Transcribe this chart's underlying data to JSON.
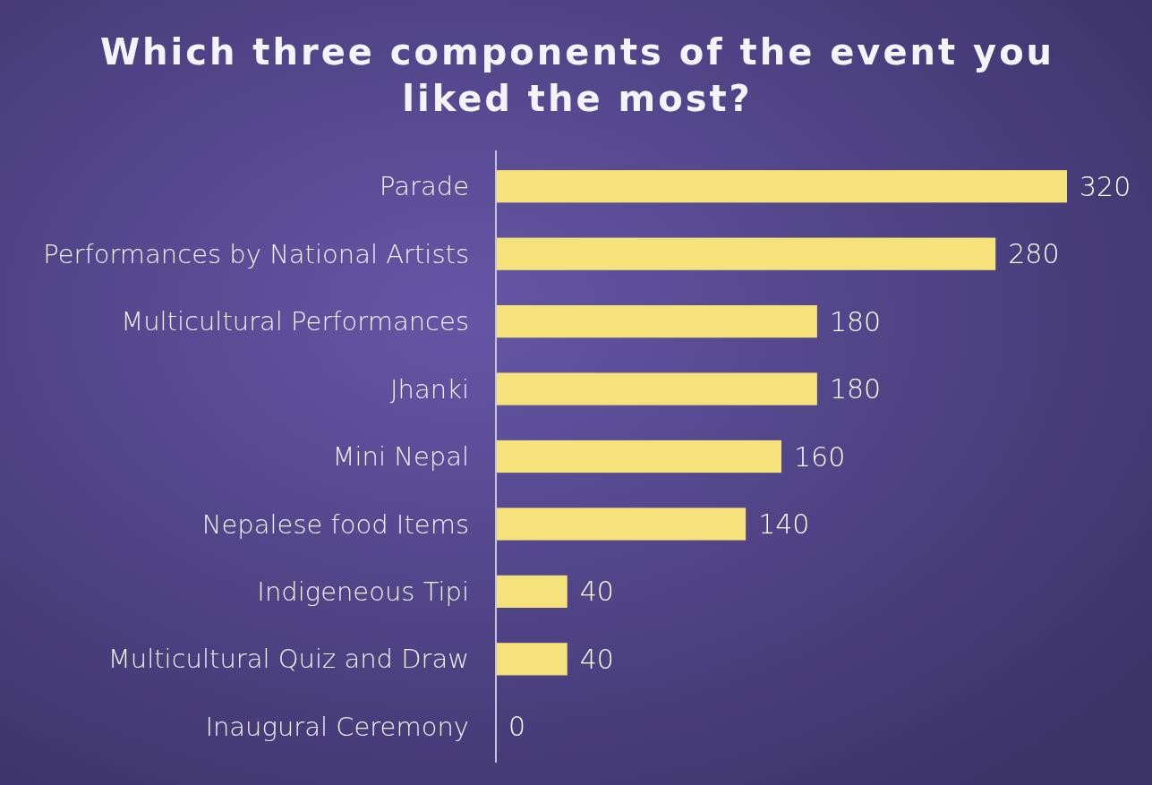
{
  "chart_data": {
    "type": "bar",
    "orientation": "horizontal",
    "title": "Which three components of the event you liked the most?",
    "categories": [
      "Parade",
      "Performances by National Artists",
      "Multicultural Performances",
      "Jhanki",
      "Mini Nepal",
      "Nepalese food Items",
      "Indigeneous Tipi",
      "Multicultural Quiz and Draw",
      "Inaugural Ceremony"
    ],
    "values": [
      320,
      280,
      180,
      180,
      160,
      140,
      40,
      40,
      0
    ],
    "color": "#f5e27a",
    "data_labels": true,
    "tick_labels": "y"
  }
}
